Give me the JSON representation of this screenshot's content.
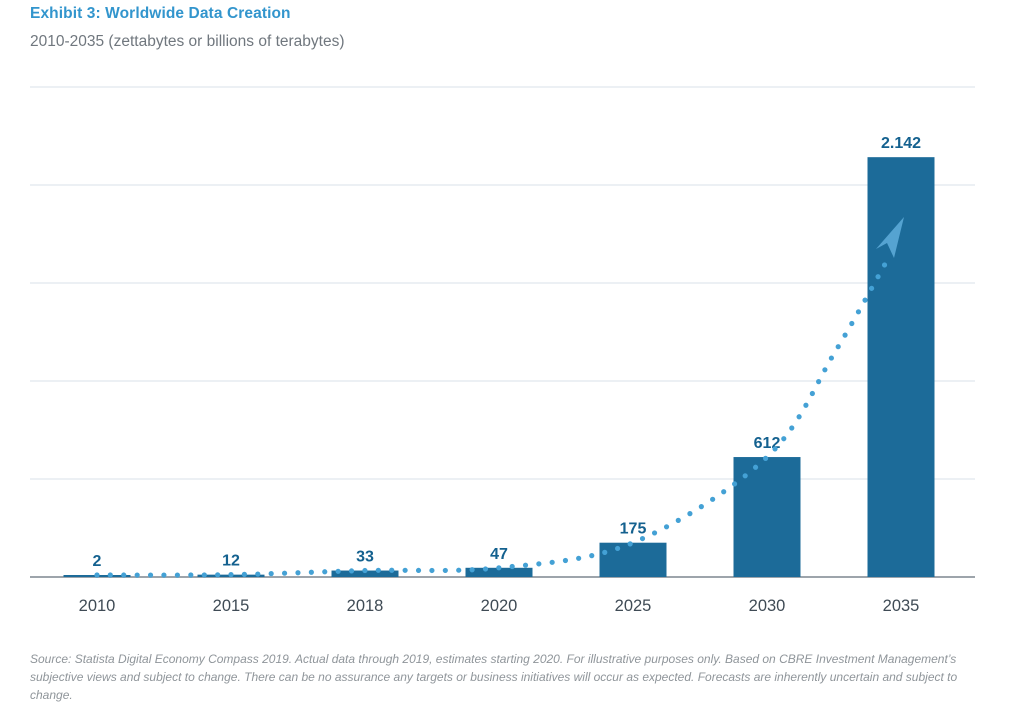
{
  "header": {
    "title": "Exhibit 3: Worldwide Data Creation",
    "subtitle": "2010-2035 (zettabytes or billions of terabytes)"
  },
  "chart_data": {
    "type": "bar",
    "title": "Exhibit 3: Worldwide Data Creation",
    "subtitle": "2010-2035 (zettabytes or billions of terabytes)",
    "categories": [
      "2010",
      "2015",
      "2018",
      "2020",
      "2025",
      "2030",
      "2035"
    ],
    "values": [
      2,
      12,
      33,
      47,
      175,
      612,
      2142
    ],
    "value_labels": [
      "2",
      "12",
      "33",
      "47",
      "175",
      "612",
      "2.142"
    ],
    "unit": "zettabytes",
    "xlabel": "",
    "ylabel": "",
    "ylim": [
      0,
      2500
    ],
    "gridline_step": 500,
    "grid": true,
    "legend_position": "none",
    "y_axis_labels_visible": false,
    "annotations": [
      "dotted exponential trend line with upward arrow through bar tops"
    ]
  },
  "colors": {
    "title": "#3295CD",
    "subtitle": "#70777E",
    "bar": "#1C6B99",
    "value_label": "#14618F",
    "trend_dots": "#44A1D5",
    "trend_arrow": "#55A3D1",
    "axis_tick_label": "#3F4B55",
    "gridline": "#D9E2E9",
    "baseline": "#9DA4AB",
    "source_text": "#8F959A"
  },
  "footer": {
    "source": "Source: Statista Digital Economy Compass 2019. Actual data through 2019, estimates starting 2020. For illustrative purposes only. Based on CBRE Investment Management’s subjective views and subject to change. There can be no assurance any targets or business initiatives will occur as expected. Forecasts are inherently uncertain and subject to change."
  }
}
